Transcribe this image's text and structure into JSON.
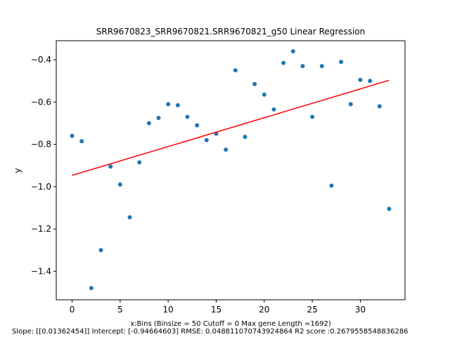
{
  "chart_data": {
    "type": "scatter",
    "title": "SRR9670823_SRR9670821.SRR9670821_g50 Linear Regression",
    "xlabel": "x:Bins  (Binsize = 50 Cutoff = 0 Max gene Length =1692)",
    "ylabel": "y",
    "footnote": "Slope: [[0.01362454]] Intercept: [-0.94664603] RMSE: 0.048811070743924864 R2 score :0.2679558548836286",
    "xlim": [
      -1.65,
      34.65
    ],
    "ylim": [
      -1.535,
      -0.31
    ],
    "x_ticks": [
      0,
      5,
      10,
      15,
      20,
      25,
      30
    ],
    "x_tick_labels": [
      "0",
      "5",
      "10",
      "15",
      "20",
      "25",
      "30"
    ],
    "y_ticks": [
      -1.4,
      -1.2,
      -1.0,
      -0.8,
      -0.6,
      -0.4
    ],
    "y_tick_labels": [
      "−1.4",
      "−1.2",
      "−1.0",
      "−0.8",
      "−0.6",
      "−0.4"
    ],
    "grid": false,
    "colors": {
      "points": "#1f77b4",
      "fit_line": "#ff0000"
    },
    "series": [
      {
        "kind": "scatter",
        "x": [
          0,
          1,
          2,
          3,
          4,
          5,
          6,
          7,
          8,
          9,
          10,
          11,
          12,
          13,
          14,
          15,
          16,
          17,
          18,
          19,
          20,
          21,
          22,
          23,
          24,
          25,
          26,
          27,
          28,
          29,
          30,
          31,
          32,
          33
        ],
        "y": [
          -0.76,
          -0.785,
          -1.48,
          -1.3,
          -0.905,
          -0.99,
          -1.145,
          -0.885,
          -0.7,
          -0.675,
          -0.61,
          -0.615,
          -0.67,
          -0.71,
          -0.78,
          -0.75,
          -0.825,
          -0.45,
          -0.765,
          -0.515,
          -0.565,
          -0.635,
          -0.415,
          -0.36,
          -0.43,
          -0.67,
          -0.43,
          -0.995,
          -0.41,
          -0.61,
          -0.495,
          -0.5,
          -0.62,
          -1.105
        ]
      },
      {
        "kind": "line",
        "slope": 0.01362454,
        "intercept": -0.94664603,
        "x": [
          0,
          33
        ]
      }
    ]
  }
}
